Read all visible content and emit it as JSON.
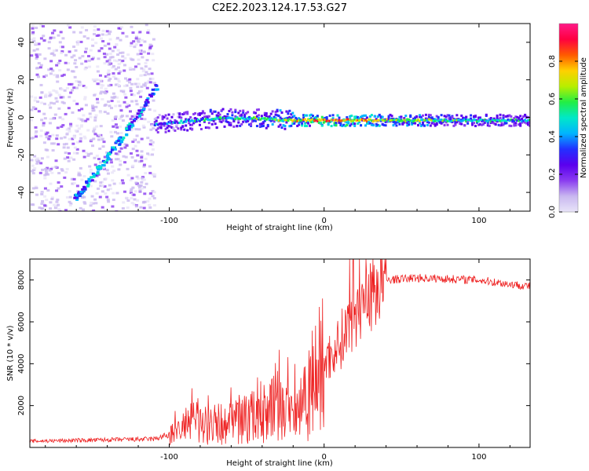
{
  "title": "C2E2.2023.124.17.53.G27",
  "colors": {
    "snr_line": "#ee2222",
    "cmap": [
      "#e8e4f8",
      "#c9b8f0",
      "#8a3cf0",
      "#5a00ee",
      "#2230ff",
      "#00b4ff",
      "#00e8c8",
      "#22ee44",
      "#b8ee00",
      "#ffd000",
      "#ff5a00",
      "#ff0040",
      "#ff1a88"
    ]
  },
  "chart_data": [
    {
      "type": "heatmap",
      "name": "spectrogram",
      "xlabel": "Height of straight line (km)",
      "ylabel": "Frequency (Hz)",
      "xlim": [
        -190,
        133
      ],
      "ylim": [
        -50,
        50
      ],
      "xticks": [
        -100,
        0,
        100
      ],
      "yticks": [
        -40,
        -20,
        0,
        20,
        40
      ],
      "xtick_labels": [
        "-100",
        "0",
        "100"
      ],
      "ytick_labels": [
        "-40",
        "-20",
        "0",
        "20",
        "40"
      ],
      "features": [
        {
          "name": "main-doppler-line",
          "x": [
            -110,
            -70,
            -40,
            -20,
            0,
            40,
            133
          ],
          "freq": [
            -3,
            0,
            0,
            -1,
            -1,
            -1,
            -1
          ],
          "amplitude": [
            0.35,
            0.45,
            0.5,
            0.65,
            0.85,
            0.6,
            0.4
          ]
        },
        {
          "name": "diagonal-streak",
          "x": [
            -162,
            -140,
            -120,
            -108
          ],
          "freq": [
            -43,
            -20,
            3,
            18
          ],
          "amplitude": [
            0.4,
            0.45,
            0.4,
            0.35
          ]
        },
        {
          "name": "low-snr-noise",
          "x_range": [
            -190,
            -110
          ],
          "freq_range": [
            -50,
            50
          ],
          "amplitude": 0.08
        }
      ]
    },
    {
      "type": "colorbar",
      "label": "Normalized spectral amplitude",
      "ticks": [
        0.0,
        0.2,
        0.4,
        0.6,
        0.8
      ],
      "tick_labels": [
        "0.0",
        "0.2",
        "0.4",
        "0.6",
        "0.8"
      ],
      "range": [
        0,
        1
      ]
    },
    {
      "type": "line",
      "name": "snr",
      "xlabel": "Height of straight line (km)",
      "ylabel": "SNR (10 * v/v)",
      "xlim": [
        -190,
        133
      ],
      "ylim": [
        0,
        9000
      ],
      "xticks": [
        -100,
        0,
        100
      ],
      "yticks": [
        2000,
        4000,
        6000,
        8000
      ],
      "xtick_labels": [
        "-100",
        "0",
        "100"
      ],
      "ytick_labels": [
        "2000",
        "4000",
        "6000",
        "8000"
      ],
      "series": [
        {
          "name": "SNR",
          "x": [
            -190,
            -150,
            -110,
            -100,
            -90,
            -80,
            -70,
            -60,
            -50,
            -40,
            -30,
            -20,
            -10,
            0,
            10,
            20,
            30,
            40,
            60,
            80,
            100,
            120,
            133
          ],
          "y": [
            300,
            350,
            400,
            600,
            1000,
            1300,
            1100,
            1200,
            1400,
            1700,
            2000,
            1500,
            3000,
            4000,
            5000,
            6500,
            7500,
            8000,
            8100,
            8050,
            8000,
            7800,
            7700
          ]
        }
      ]
    }
  ]
}
